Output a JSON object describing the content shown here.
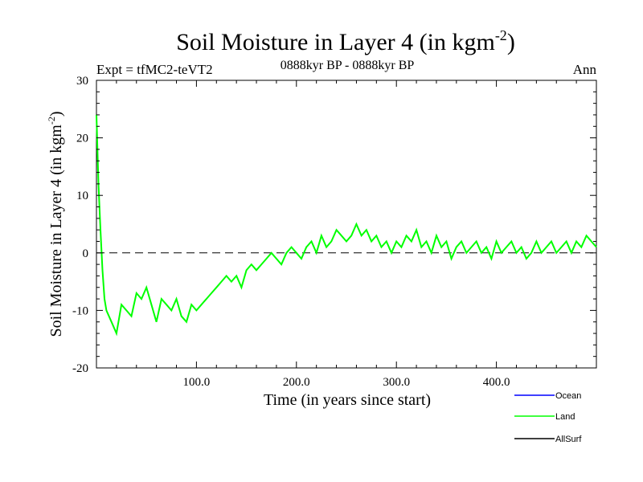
{
  "chart_data": {
    "type": "line",
    "title": "Soil Moisture in Layer 4 (in kgm",
    "title_superscript": "-2",
    "title_suffix": ")",
    "subtitle": "0888kyr BP - 0888kyr BP",
    "experiment_label": "Expt = tfMC2-teVT2",
    "season_label": "Ann",
    "xlabel": "Time (in years since start)",
    "ylabel": "Soil Moisture in Layer 4 (in kgm",
    "ylabel_superscript": "-2",
    "ylabel_suffix": ")",
    "xlim": [
      0,
      500
    ],
    "ylim": [
      -20,
      30
    ],
    "x_ticks": [
      100,
      200,
      300,
      400
    ],
    "x_tick_labels": [
      "100.0",
      "200.0",
      "300.0",
      "400.0"
    ],
    "y_ticks": [
      -20,
      -10,
      0,
      10,
      20,
      30
    ],
    "y_tick_labels": [
      "-20",
      "-10",
      "0",
      "10",
      "20",
      "30"
    ],
    "zero_line": 0,
    "legend": [
      {
        "name": "Ocean",
        "color": "#0000ff"
      },
      {
        "name": "Land",
        "color": "#00ff00"
      },
      {
        "name": "AllSurf",
        "color": "#000000"
      }
    ],
    "series": [
      {
        "name": "Land",
        "color": "#00ff00",
        "x": [
          0,
          2,
          4,
          6,
          8,
          10,
          15,
          20,
          25,
          30,
          35,
          40,
          45,
          50,
          55,
          60,
          65,
          70,
          75,
          80,
          85,
          90,
          95,
          100,
          105,
          110,
          115,
          120,
          125,
          130,
          135,
          140,
          145,
          150,
          155,
          160,
          165,
          170,
          175,
          180,
          185,
          190,
          195,
          200,
          205,
          210,
          215,
          220,
          225,
          230,
          235,
          240,
          245,
          250,
          255,
          260,
          265,
          270,
          275,
          280,
          285,
          290,
          295,
          300,
          305,
          310,
          315,
          320,
          325,
          330,
          335,
          340,
          345,
          350,
          355,
          360,
          365,
          370,
          375,
          380,
          385,
          390,
          395,
          400,
          405,
          410,
          415,
          420,
          425,
          430,
          435,
          440,
          445,
          450,
          455,
          460,
          465,
          470,
          475,
          480,
          485,
          490,
          495,
          500
        ],
        "y": [
          24,
          12,
          4,
          -3,
          -8,
          -10,
          -12,
          -14,
          -9,
          -10,
          -11,
          -7,
          -8,
          -6,
          -9,
          -12,
          -8,
          -9,
          -10,
          -8,
          -11,
          -12,
          -9,
          -10,
          -9,
          -8,
          -7,
          -6,
          -5,
          -4,
          -5,
          -4,
          -6,
          -3,
          -2,
          -3,
          -2,
          -1,
          0,
          -1,
          -2,
          0,
          1,
          0,
          -1,
          1,
          2,
          0,
          3,
          1,
          2,
          4,
          3,
          2,
          3,
          5,
          3,
          4,
          2,
          3,
          1,
          2,
          0,
          2,
          1,
          3,
          2,
          4,
          1,
          2,
          0,
          3,
          1,
          2,
          -1,
          1,
          2,
          0,
          1,
          2,
          0,
          1,
          -1,
          2,
          0,
          1,
          2,
          0,
          1,
          -1,
          0,
          2,
          0,
          1,
          2,
          0,
          1,
          2,
          0,
          2,
          1,
          3,
          2,
          1
        ]
      }
    ]
  }
}
